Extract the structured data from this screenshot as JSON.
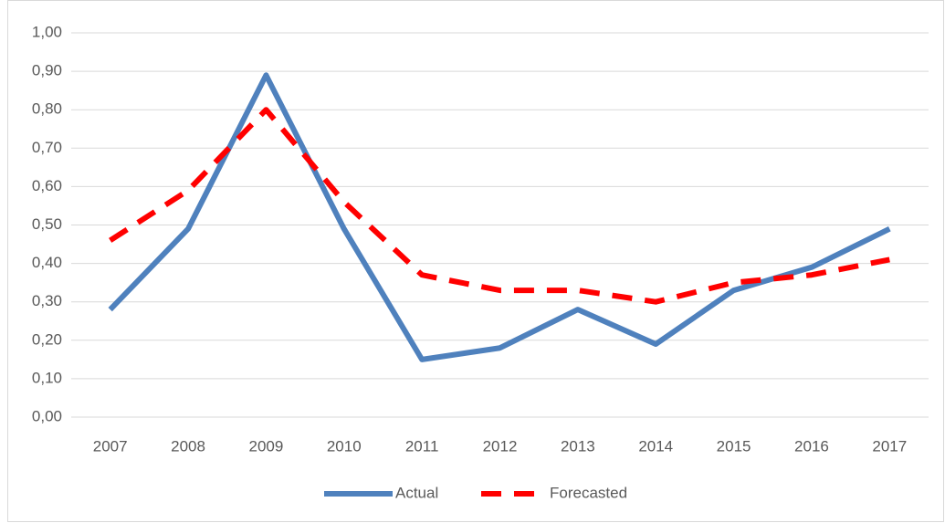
{
  "chart_data": {
    "type": "line",
    "categories": [
      "2007",
      "2008",
      "2009",
      "2010",
      "2011",
      "2012",
      "2013",
      "2014",
      "2015",
      "2016",
      "2017"
    ],
    "series": [
      {
        "name": "Actual",
        "color": "#4f81bd",
        "dashed": false,
        "values": [
          0.28,
          0.49,
          0.89,
          0.49,
          0.15,
          0.18,
          0.28,
          0.19,
          0.33,
          0.39,
          0.49
        ]
      },
      {
        "name": "Forecasted",
        "color": "#ff0000",
        "dashed": true,
        "values": [
          0.46,
          0.59,
          0.8,
          0.56,
          0.37,
          0.33,
          0.33,
          0.3,
          0.35,
          0.37,
          0.41
        ]
      }
    ],
    "ylim": [
      0,
      1
    ],
    "yticks": [
      {
        "value": 0,
        "label": "0,00"
      },
      {
        "value": 0.1,
        "label": "0,10"
      },
      {
        "value": 0.2,
        "label": "0,20"
      },
      {
        "value": 0.3,
        "label": "0,30"
      },
      {
        "value": 0.4,
        "label": "0,40"
      },
      {
        "value": 0.5,
        "label": "0,50"
      },
      {
        "value": 0.6,
        "label": "0,60"
      },
      {
        "value": 0.7,
        "label": "0,70"
      },
      {
        "value": 0.8,
        "label": "0,80"
      },
      {
        "value": 0.9,
        "label": "0,90"
      },
      {
        "value": 1,
        "label": "1,00"
      }
    ],
    "grid": true,
    "legend": "bottom"
  }
}
